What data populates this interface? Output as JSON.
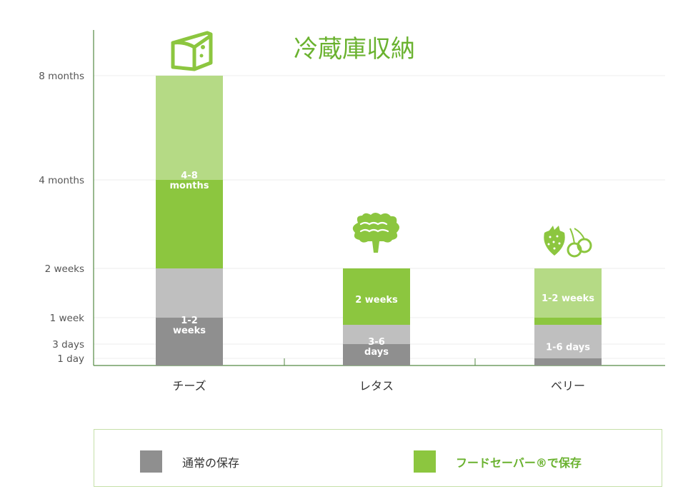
{
  "chart_data": {
    "type": "bar",
    "title": "冷蔵庫収納",
    "y_ticks": [
      "8 months",
      "4 months",
      "2 weeks",
      "1 week",
      "3 days",
      "1 day"
    ],
    "categories": [
      "チーズ",
      "レタス",
      "ベリー"
    ],
    "bars": [
      {
        "category": "チーズ",
        "icon": "cheese-icon",
        "normal": {
          "from": "0",
          "to": "2 weeks",
          "label": "1-2\nweeks"
        },
        "foodsaver": {
          "from": "2 weeks",
          "to": "8 months",
          "label": "4-8\nmonths"
        }
      },
      {
        "category": "レタス",
        "icon": "lettuce-icon",
        "normal": {
          "from": "0",
          "to": "6 days",
          "label": "3-6\ndays"
        },
        "foodsaver": {
          "from": "6 days",
          "to": "2 weeks",
          "label": "2 weeks"
        }
      },
      {
        "category": "ベリー",
        "icon": "berries-icon",
        "normal": {
          "from": "0",
          "to": "6 days",
          "label": "1-6 days"
        },
        "foodsaver": {
          "from": "6 days",
          "to": "2 weeks",
          "label": "1-2 weeks"
        }
      }
    ],
    "colors": {
      "normal_dark": "#8f8f8f",
      "normal_light": "#bfbfbf",
      "foodsaver_dark": "#8cc63f",
      "foodsaver_light": "#b5da85",
      "title": "#6ab22f"
    },
    "legend": {
      "position": "bottom",
      "items": [
        {
          "label": "通常の保存",
          "color": "#8f8f8f"
        },
        {
          "label": "フードセーバー®で保存",
          "color": "#8cc63f"
        }
      ]
    },
    "grid": true
  }
}
